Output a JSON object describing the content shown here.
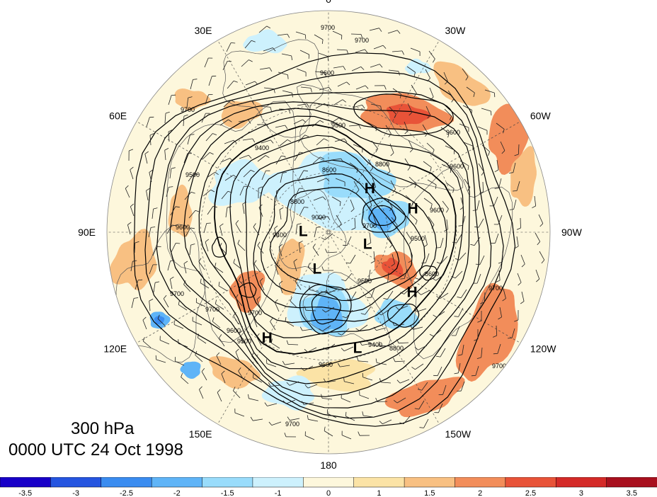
{
  "title": {
    "level": "300 hPa",
    "time": "0000 UTC 24 Oct 1998"
  },
  "map": {
    "projection": "north-polar-stereographic",
    "background": "#fdf7dc",
    "longitude_labels": [
      {
        "text": "0",
        "lon": 0
      },
      {
        "text": "30W",
        "lon": -30
      },
      {
        "text": "60W",
        "lon": -60
      },
      {
        "text": "90W",
        "lon": -90
      },
      {
        "text": "120W",
        "lon": -120
      },
      {
        "text": "150W",
        "lon": -150
      },
      {
        "text": "180",
        "lon": 180
      },
      {
        "text": "150E",
        "lon": 150
      },
      {
        "text": "120E",
        "lon": 120
      },
      {
        "text": "90E",
        "lon": 90
      },
      {
        "text": "60E",
        "lon": 60
      },
      {
        "text": "30E",
        "lon": 30
      }
    ],
    "pressure_centers": [
      {
        "label": "H",
        "lon": -44,
        "lat": 60
      },
      {
        "label": "H",
        "lon": -75,
        "lat": 47
      },
      {
        "label": "H",
        "lon": -126,
        "lat": 40
      },
      {
        "label": "H",
        "lon": 150,
        "lat": 32
      },
      {
        "label": "L",
        "lon": -108,
        "lat": 69
      },
      {
        "label": "L",
        "lon": 90,
        "lat": 77
      },
      {
        "label": "L",
        "lon": 163,
        "lat": 70
      },
      {
        "label": "L",
        "lon": -166,
        "lat": 33
      }
    ],
    "contour_labels": [
      "9700",
      "9700",
      "9600",
      "9700",
      "9500",
      "9400",
      "9500",
      "9600",
      "9700",
      "8800",
      "8600",
      "8800",
      "9000",
      "9500",
      "9600",
      "9600",
      "9400",
      "8800",
      "9500",
      "9600",
      "9700",
      "9700",
      "9700",
      "9700",
      "9600",
      "9500",
      "9400",
      "8600",
      "9700",
      "9600",
      "9700"
    ]
  },
  "colorbar": {
    "colors": [
      "#1800c8",
      "#2555e0",
      "#3a8cf0",
      "#5fb4f7",
      "#99dcfb",
      "#cdf1fd",
      "#fdf7dc",
      "#fbe3a6",
      "#f8c082",
      "#f28d5a",
      "#e85338",
      "#d42a28",
      "#a8101e"
    ],
    "tick_labels": [
      "-3.5",
      "-3",
      "-2.5",
      "-2",
      "-1.5",
      "-1",
      "0",
      "1",
      "1.5",
      "2",
      "2.5",
      "3",
      "3.5"
    ]
  }
}
